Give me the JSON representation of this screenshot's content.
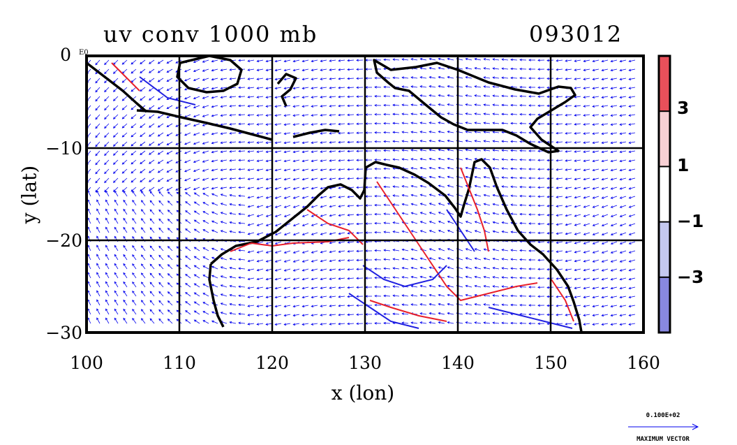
{
  "title_left": "uv conv 1000 mb",
  "title_right": "093012",
  "x_axis": {
    "label": "x (lon)",
    "range": [
      100,
      160
    ],
    "ticks": [
      "100",
      "110",
      "120",
      "130",
      "140",
      "150",
      "160"
    ]
  },
  "y_axis": {
    "label": "y (lat)",
    "range": [
      -30,
      0
    ],
    "ticks": [
      "0",
      "−10",
      "−20",
      "−30"
    ]
  },
  "y_exponent": "E0",
  "colorbar": {
    "ticks": [
      "3",
      "1",
      "−1",
      "−3"
    ],
    "colors": [
      "#e8505a",
      "#f8d0d4",
      "#ffffff",
      "#c4c8f0",
      "#8888e0"
    ]
  },
  "vector_key": {
    "value": "0.100E+02",
    "label": "MAXIMUM VECTOR"
  },
  "colors": {
    "vectors": "#0000ee",
    "positive_contour": "#e8202a",
    "negative_contour": "#2020e0",
    "coast": "#000000"
  }
}
